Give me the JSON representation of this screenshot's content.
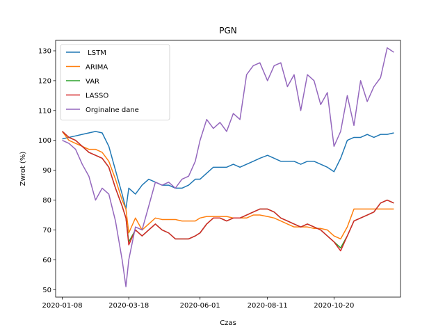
{
  "chart_data": {
    "type": "line",
    "title": "PGN",
    "xlabel": "Czas",
    "ylabel": "Zwrot (%)",
    "x_start": "2020-01-08",
    "x_end": "2020-12-22",
    "xlim": [
      "2020-01-01",
      "2020-12-29"
    ],
    "ylim": [
      47.5,
      133.5
    ],
    "x_ticks": [
      "2020-01-08",
      "2020-03-18",
      "2020-06-01",
      "2020-08-11",
      "2020-10-20"
    ],
    "y_ticks": [
      50,
      60,
      70,
      80,
      90,
      100,
      110,
      120,
      130
    ],
    "legend_position": "upper-left",
    "grid": false,
    "series": [
      {
        "name": " LSTM",
        "color": "#1f77b4",
        "points": [
          [
            "2020-01-08",
            100.5
          ],
          [
            "2020-01-15",
            101
          ],
          [
            "2020-01-22",
            101.5
          ],
          [
            "2020-01-29",
            102
          ],
          [
            "2020-02-05",
            102.5
          ],
          [
            "2020-02-12",
            103
          ],
          [
            "2020-02-19",
            102.5
          ],
          [
            "2020-02-26",
            98
          ],
          [
            "2020-03-04",
            90
          ],
          [
            "2020-03-11",
            82
          ],
          [
            "2020-03-15",
            77
          ],
          [
            "2020-03-18",
            84
          ],
          [
            "2020-03-25",
            82
          ],
          [
            "2020-04-01",
            85
          ],
          [
            "2020-04-08",
            87
          ],
          [
            "2020-04-15",
            86
          ],
          [
            "2020-04-22",
            85
          ],
          [
            "2020-04-29",
            85
          ],
          [
            "2020-05-06",
            84
          ],
          [
            "2020-05-13",
            84
          ],
          [
            "2020-05-20",
            85
          ],
          [
            "2020-05-27",
            87
          ],
          [
            "2020-06-01",
            87
          ],
          [
            "2020-06-08",
            89
          ],
          [
            "2020-06-15",
            91
          ],
          [
            "2020-06-22",
            91
          ],
          [
            "2020-06-29",
            91
          ],
          [
            "2020-07-06",
            92
          ],
          [
            "2020-07-13",
            91
          ],
          [
            "2020-07-20",
            92
          ],
          [
            "2020-07-27",
            93
          ],
          [
            "2020-08-03",
            94
          ],
          [
            "2020-08-11",
            95
          ],
          [
            "2020-08-18",
            94
          ],
          [
            "2020-08-25",
            93
          ],
          [
            "2020-09-01",
            93
          ],
          [
            "2020-09-08",
            93
          ],
          [
            "2020-09-15",
            92
          ],
          [
            "2020-09-22",
            93
          ],
          [
            "2020-09-29",
            93
          ],
          [
            "2020-10-06",
            92
          ],
          [
            "2020-10-13",
            91
          ],
          [
            "2020-10-20",
            89.5
          ],
          [
            "2020-10-27",
            94
          ],
          [
            "2020-11-03",
            100
          ],
          [
            "2020-11-10",
            101
          ],
          [
            "2020-11-17",
            101
          ],
          [
            "2020-11-24",
            102
          ],
          [
            "2020-12-01",
            101
          ],
          [
            "2020-12-08",
            102
          ],
          [
            "2020-12-15",
            102
          ],
          [
            "2020-12-22",
            102.5
          ]
        ]
      },
      {
        "name": "ARIMA",
        "color": "#ff7f0e",
        "points": [
          [
            "2020-01-08",
            103
          ],
          [
            "2020-01-15",
            100
          ],
          [
            "2020-01-22",
            99
          ],
          [
            "2020-01-29",
            98
          ],
          [
            "2020-02-05",
            97
          ],
          [
            "2020-02-12",
            97
          ],
          [
            "2020-02-19",
            96
          ],
          [
            "2020-02-26",
            93
          ],
          [
            "2020-03-04",
            87
          ],
          [
            "2020-03-11",
            80
          ],
          [
            "2020-03-15",
            77
          ],
          [
            "2020-03-18",
            69
          ],
          [
            "2020-03-25",
            74
          ],
          [
            "2020-04-01",
            70
          ],
          [
            "2020-04-08",
            72
          ],
          [
            "2020-04-15",
            74
          ],
          [
            "2020-04-22",
            73.5
          ],
          [
            "2020-04-29",
            73.5
          ],
          [
            "2020-05-06",
            73.5
          ],
          [
            "2020-05-13",
            73
          ],
          [
            "2020-05-20",
            73
          ],
          [
            "2020-05-27",
            73
          ],
          [
            "2020-06-01",
            74
          ],
          [
            "2020-06-08",
            74.5
          ],
          [
            "2020-06-15",
            74.5
          ],
          [
            "2020-06-22",
            74.5
          ],
          [
            "2020-06-29",
            74.5
          ],
          [
            "2020-07-06",
            74
          ],
          [
            "2020-07-13",
            74
          ],
          [
            "2020-07-20",
            74
          ],
          [
            "2020-07-27",
            75
          ],
          [
            "2020-08-03",
            75
          ],
          [
            "2020-08-11",
            74.5
          ],
          [
            "2020-08-18",
            74
          ],
          [
            "2020-08-25",
            73
          ],
          [
            "2020-09-01",
            72
          ],
          [
            "2020-09-08",
            71
          ],
          [
            "2020-09-15",
            71
          ],
          [
            "2020-09-22",
            71
          ],
          [
            "2020-09-29",
            70.5
          ],
          [
            "2020-10-06",
            70.5
          ],
          [
            "2020-10-13",
            70
          ],
          [
            "2020-10-20",
            68
          ],
          [
            "2020-10-27",
            67
          ],
          [
            "2020-11-03",
            71
          ],
          [
            "2020-11-10",
            77
          ],
          [
            "2020-11-17",
            77
          ],
          [
            "2020-11-24",
            77
          ],
          [
            "2020-12-01",
            77
          ],
          [
            "2020-12-08",
            77
          ],
          [
            "2020-12-15",
            77
          ],
          [
            "2020-12-22",
            77
          ]
        ]
      },
      {
        "name": "VAR",
        "color": "#2ca02c",
        "points": [
          [
            "2020-01-08",
            103
          ],
          [
            "2020-01-15",
            101
          ],
          [
            "2020-01-22",
            100
          ],
          [
            "2020-01-29",
            98
          ],
          [
            "2020-02-05",
            96
          ],
          [
            "2020-02-12",
            95
          ],
          [
            "2020-02-19",
            94
          ],
          [
            "2020-02-26",
            91
          ],
          [
            "2020-03-04",
            84
          ],
          [
            "2020-03-11",
            78
          ],
          [
            "2020-03-15",
            74
          ],
          [
            "2020-03-18",
            66
          ],
          [
            "2020-03-25",
            70
          ],
          [
            "2020-04-01",
            68
          ],
          [
            "2020-04-08",
            70
          ],
          [
            "2020-04-15",
            72
          ],
          [
            "2020-04-22",
            70
          ],
          [
            "2020-04-29",
            69
          ],
          [
            "2020-05-06",
            67
          ],
          [
            "2020-05-13",
            67
          ],
          [
            "2020-05-20",
            67
          ],
          [
            "2020-05-27",
            68
          ],
          [
            "2020-06-01",
            69
          ],
          [
            "2020-06-08",
            72
          ],
          [
            "2020-06-15",
            74
          ],
          [
            "2020-06-22",
            74
          ],
          [
            "2020-06-29",
            73
          ],
          [
            "2020-07-06",
            74
          ],
          [
            "2020-07-13",
            74
          ],
          [
            "2020-07-20",
            75
          ],
          [
            "2020-07-27",
            76
          ],
          [
            "2020-08-03",
            77
          ],
          [
            "2020-08-11",
            77
          ],
          [
            "2020-08-18",
            76
          ],
          [
            "2020-08-25",
            74
          ],
          [
            "2020-09-01",
            73
          ],
          [
            "2020-09-08",
            72
          ],
          [
            "2020-09-15",
            71
          ],
          [
            "2020-09-22",
            72
          ],
          [
            "2020-09-29",
            71
          ],
          [
            "2020-10-06",
            70
          ],
          [
            "2020-10-13",
            68
          ],
          [
            "2020-10-20",
            66
          ],
          [
            "2020-10-27",
            64
          ],
          [
            "2020-11-03",
            68
          ],
          [
            "2020-11-10",
            73
          ],
          [
            "2020-11-17",
            74
          ],
          [
            "2020-11-24",
            75
          ],
          [
            "2020-12-01",
            76
          ],
          [
            "2020-12-08",
            79
          ],
          [
            "2020-12-15",
            80
          ],
          [
            "2020-12-22",
            79
          ]
        ]
      },
      {
        "name": "LASSO",
        "color": "#d62728",
        "points": [
          [
            "2020-01-08",
            103
          ],
          [
            "2020-01-15",
            101
          ],
          [
            "2020-01-22",
            100
          ],
          [
            "2020-01-29",
            98
          ],
          [
            "2020-02-05",
            96
          ],
          [
            "2020-02-12",
            95
          ],
          [
            "2020-02-19",
            94
          ],
          [
            "2020-02-26",
            91
          ],
          [
            "2020-03-04",
            84
          ],
          [
            "2020-03-11",
            78
          ],
          [
            "2020-03-15",
            74
          ],
          [
            "2020-03-18",
            65
          ],
          [
            "2020-03-25",
            70
          ],
          [
            "2020-04-01",
            68
          ],
          [
            "2020-04-08",
            70
          ],
          [
            "2020-04-15",
            72
          ],
          [
            "2020-04-22",
            70
          ],
          [
            "2020-04-29",
            69
          ],
          [
            "2020-05-06",
            67
          ],
          [
            "2020-05-13",
            67
          ],
          [
            "2020-05-20",
            67
          ],
          [
            "2020-05-27",
            68
          ],
          [
            "2020-06-01",
            69
          ],
          [
            "2020-06-08",
            72
          ],
          [
            "2020-06-15",
            74
          ],
          [
            "2020-06-22",
            74
          ],
          [
            "2020-06-29",
            73
          ],
          [
            "2020-07-06",
            74
          ],
          [
            "2020-07-13",
            74
          ],
          [
            "2020-07-20",
            75
          ],
          [
            "2020-07-27",
            76
          ],
          [
            "2020-08-03",
            77
          ],
          [
            "2020-08-11",
            77
          ],
          [
            "2020-08-18",
            76
          ],
          [
            "2020-08-25",
            74
          ],
          [
            "2020-09-01",
            73
          ],
          [
            "2020-09-08",
            72
          ],
          [
            "2020-09-15",
            71
          ],
          [
            "2020-09-22",
            72
          ],
          [
            "2020-09-29",
            71
          ],
          [
            "2020-10-06",
            70
          ],
          [
            "2020-10-13",
            68
          ],
          [
            "2020-10-20",
            66
          ],
          [
            "2020-10-27",
            63
          ],
          [
            "2020-11-03",
            68
          ],
          [
            "2020-11-10",
            73
          ],
          [
            "2020-11-17",
            74
          ],
          [
            "2020-11-24",
            75
          ],
          [
            "2020-12-01",
            76
          ],
          [
            "2020-12-08",
            79
          ],
          [
            "2020-12-15",
            80
          ],
          [
            "2020-12-22",
            79
          ]
        ]
      },
      {
        "name": "Orginalne dane",
        "color": "#9467bd",
        "points": [
          [
            "2020-01-08",
            100
          ],
          [
            "2020-01-15",
            99
          ],
          [
            "2020-01-22",
            97
          ],
          [
            "2020-01-29",
            92
          ],
          [
            "2020-02-05",
            88
          ],
          [
            "2020-02-12",
            80
          ],
          [
            "2020-02-19",
            84
          ],
          [
            "2020-02-26",
            82
          ],
          [
            "2020-03-04",
            73
          ],
          [
            "2020-03-11",
            60
          ],
          [
            "2020-03-15",
            51
          ],
          [
            "2020-03-18",
            60
          ],
          [
            "2020-03-25",
            71
          ],
          [
            "2020-04-01",
            70
          ],
          [
            "2020-04-08",
            78
          ],
          [
            "2020-04-15",
            86
          ],
          [
            "2020-04-22",
            85
          ],
          [
            "2020-04-29",
            86
          ],
          [
            "2020-05-06",
            84
          ],
          [
            "2020-05-13",
            87
          ],
          [
            "2020-05-20",
            88
          ],
          [
            "2020-05-27",
            93
          ],
          [
            "2020-06-01",
            100
          ],
          [
            "2020-06-08",
            107
          ],
          [
            "2020-06-15",
            104
          ],
          [
            "2020-06-22",
            106
          ],
          [
            "2020-06-29",
            103
          ],
          [
            "2020-07-06",
            109
          ],
          [
            "2020-07-13",
            107
          ],
          [
            "2020-07-20",
            122
          ],
          [
            "2020-07-27",
            125
          ],
          [
            "2020-08-03",
            126
          ],
          [
            "2020-08-11",
            120
          ],
          [
            "2020-08-18",
            125
          ],
          [
            "2020-08-25",
            126
          ],
          [
            "2020-09-01",
            118
          ],
          [
            "2020-09-08",
            122
          ],
          [
            "2020-09-15",
            110
          ],
          [
            "2020-09-22",
            122
          ],
          [
            "2020-09-29",
            120
          ],
          [
            "2020-10-06",
            112
          ],
          [
            "2020-10-13",
            116
          ],
          [
            "2020-10-20",
            98
          ],
          [
            "2020-10-27",
            103
          ],
          [
            "2020-11-03",
            115
          ],
          [
            "2020-11-10",
            105
          ],
          [
            "2020-11-17",
            120
          ],
          [
            "2020-11-24",
            113
          ],
          [
            "2020-12-01",
            118
          ],
          [
            "2020-12-08",
            121
          ],
          [
            "2020-12-15",
            131
          ],
          [
            "2020-12-22",
            129.5
          ]
        ]
      }
    ]
  }
}
